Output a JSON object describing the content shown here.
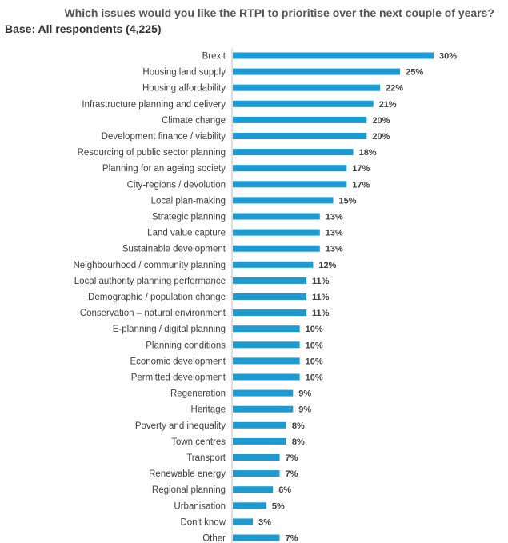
{
  "chart_data": {
    "type": "bar",
    "orientation": "horizontal",
    "title": "Which issues would you like the RTPI to prioritise over the next couple of years?",
    "subtitle": "Base: All respondents (4,225)",
    "categories": [
      "Brexit",
      "Housing land supply",
      "Housing affordability",
      "Infrastructure planning and delivery",
      "Climate change",
      "Development finance / viability",
      "Resourcing of public sector planning",
      "Planning for an ageing society",
      "City-regions / devolution",
      "Local plan-making",
      "Strategic planning",
      "Land value capture",
      "Sustainable development",
      "Neighbourhood / community planning",
      "Local authority planning performance",
      "Demographic / population change",
      "Conservation – natural environment",
      "E-planning / digital planning",
      "Planning conditions",
      "Economic development",
      "Permitted development",
      "Regeneration",
      "Heritage",
      "Poverty and inequality",
      "Town centres",
      "Transport",
      "Renewable energy",
      "Regional planning",
      "Urbanisation",
      "Don't know",
      "Other"
    ],
    "values": [
      30,
      25,
      22,
      21,
      20,
      20,
      18,
      17,
      17,
      15,
      13,
      13,
      13,
      12,
      11,
      11,
      11,
      10,
      10,
      10,
      10,
      9,
      9,
      8,
      8,
      7,
      7,
      6,
      5,
      3,
      7
    ],
    "value_labels": [
      "30%",
      "25%",
      "22%",
      "21%",
      "20%",
      "20%",
      "18%",
      "17%",
      "17%",
      "15%",
      "13%",
      "13%",
      "13%",
      "12%",
      "11%",
      "11%",
      "11%",
      "10%",
      "10%",
      "10%",
      "10%",
      "9%",
      "9%",
      "8%",
      "8%",
      "7%",
      "7%",
      "6%",
      "5%",
      "3%",
      "7%"
    ],
    "value_unit": "%",
    "xlim": [
      0,
      30
    ],
    "grid": false,
    "legend": "none",
    "bar_color": "#1b9bd1"
  }
}
